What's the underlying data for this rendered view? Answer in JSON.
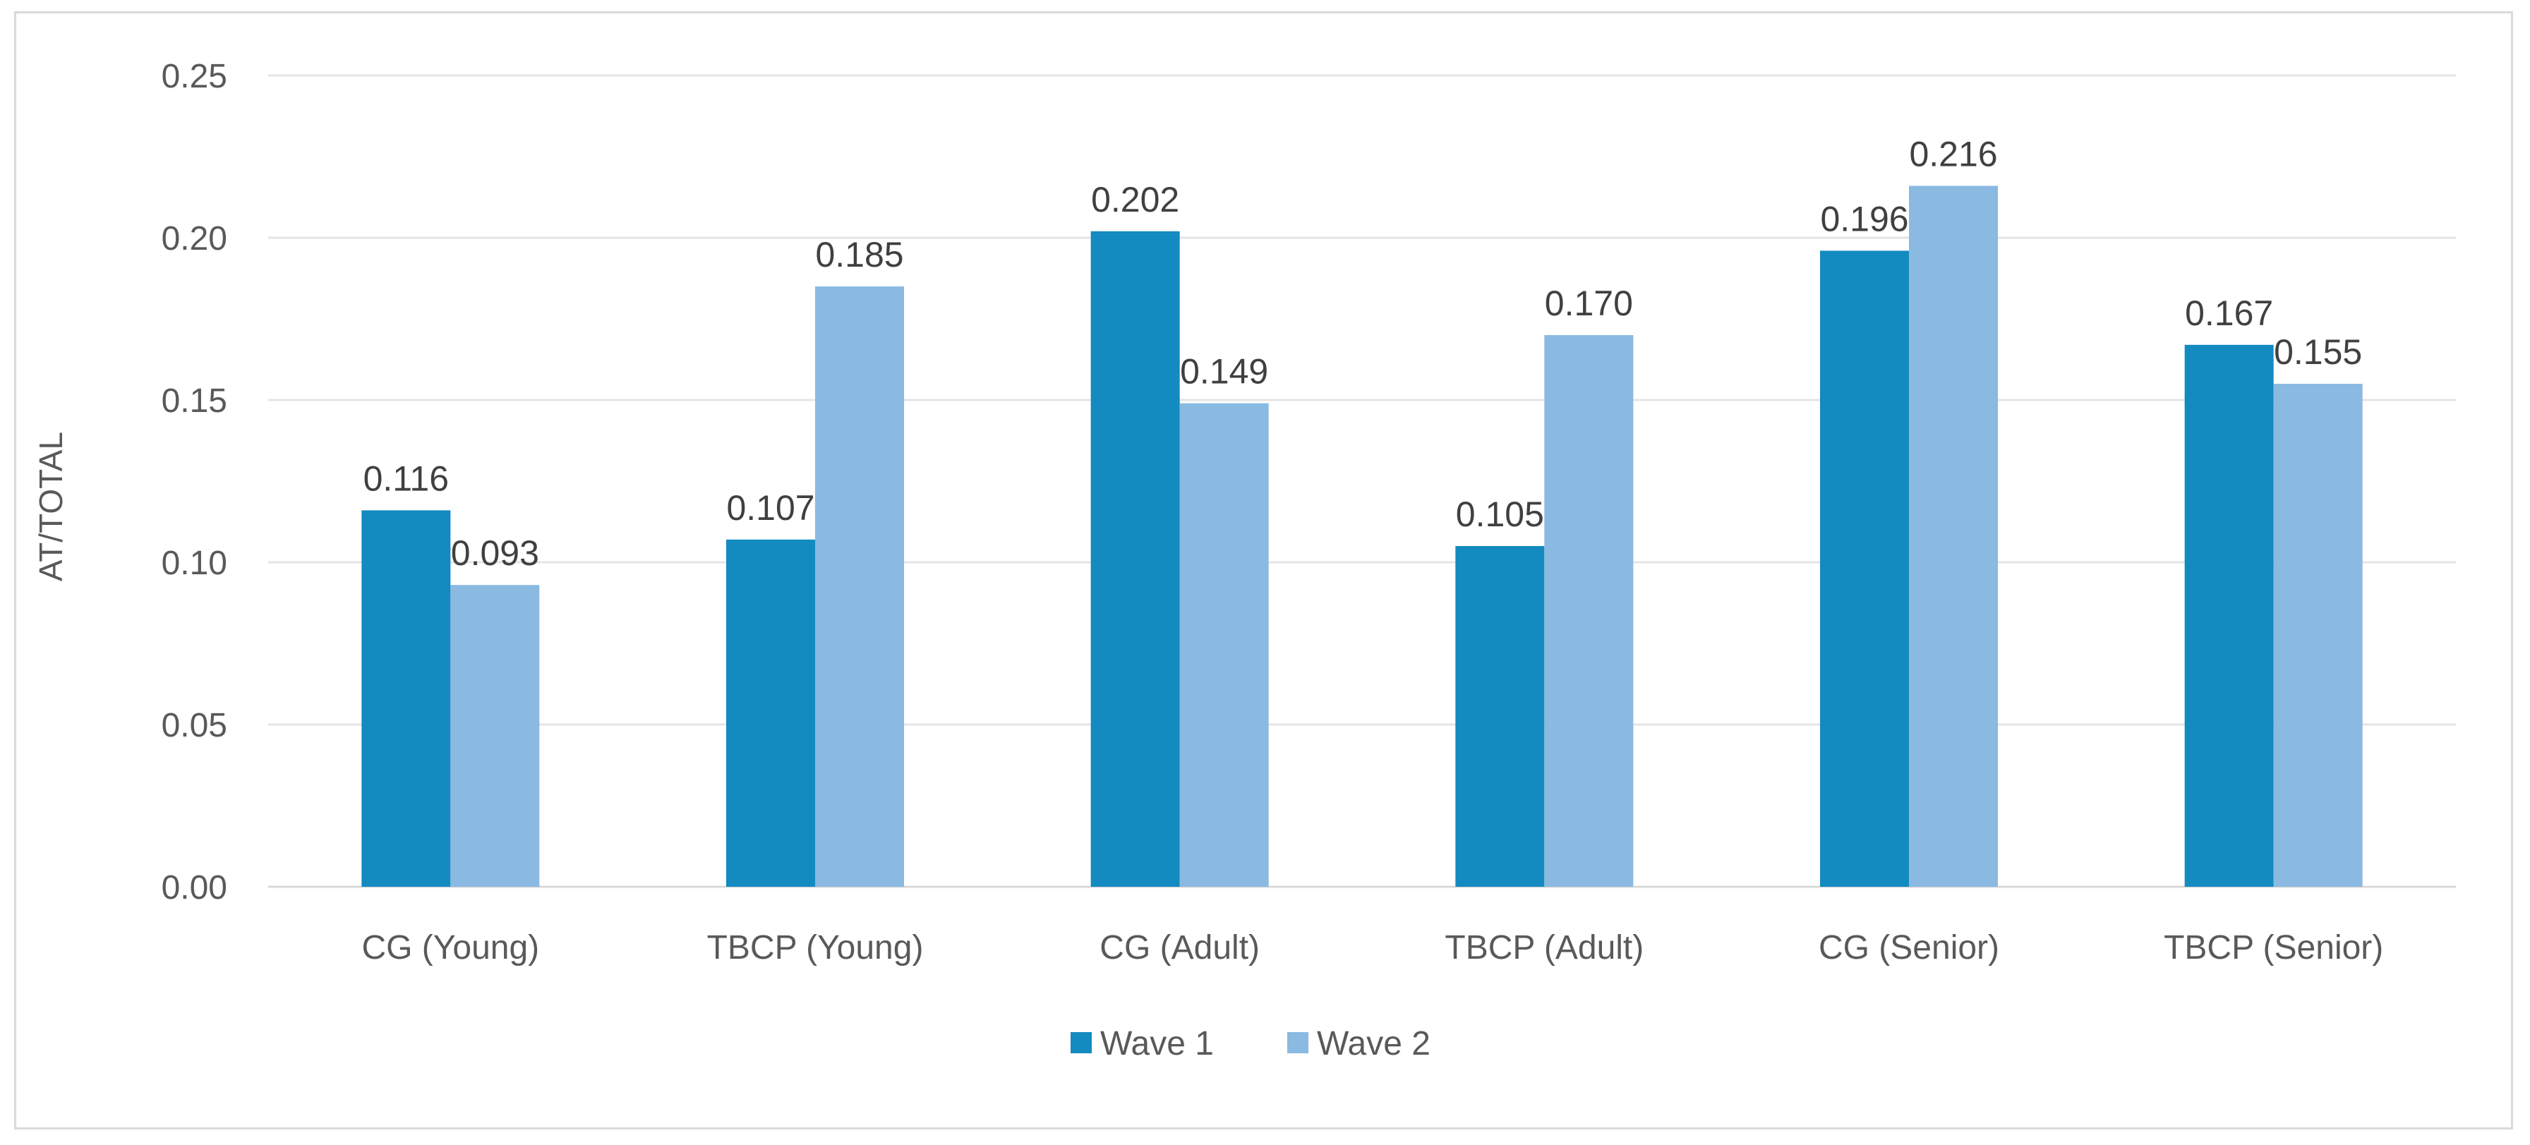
{
  "chart_data": {
    "type": "bar",
    "title": "",
    "xlabel": "",
    "ylabel": "AT/TOTAL",
    "ylim": [
      0,
      0.25
    ],
    "yticks": [
      "0.00",
      "0.05",
      "0.10",
      "0.15",
      "0.20",
      "0.25"
    ],
    "grid": true,
    "legend_position": "bottom",
    "categories": [
      "CG (Young)",
      "TBCP (Young)",
      "CG (Adult)",
      "TBCP (Adult)",
      "CG (Senior)",
      "TBCP (Senior)"
    ],
    "series": [
      {
        "name": "Wave 1",
        "color": "#138ac0",
        "values": [
          0.116,
          0.107,
          0.202,
          0.105,
          0.196,
          0.167
        ],
        "labels": [
          "0.116",
          "0.107",
          "0.202",
          "0.105",
          "0.196",
          "0.167"
        ]
      },
      {
        "name": "Wave 2",
        "color": "#8ab9e1",
        "values": [
          0.093,
          0.185,
          0.149,
          0.17,
          0.216,
          0.155
        ],
        "labels": [
          "0.093",
          "0.185",
          "0.149",
          "0.170",
          "0.216",
          "0.155"
        ]
      }
    ]
  }
}
